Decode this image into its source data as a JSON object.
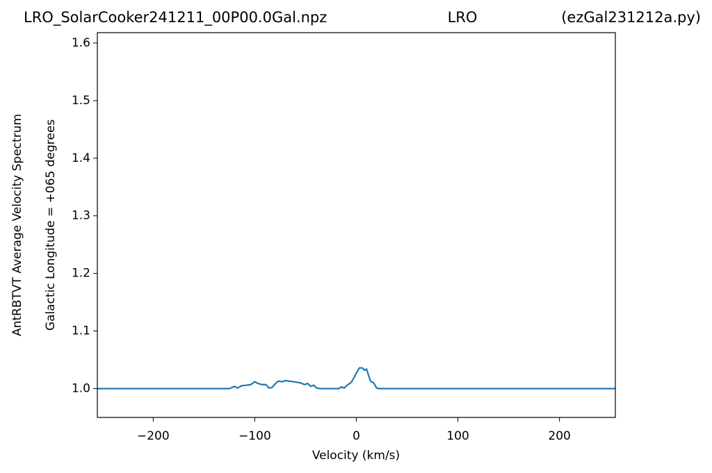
{
  "chart_data": {
    "type": "line",
    "title": "LRO_SolarCooker241211_00P00.0Gal.npz",
    "title_center": "LRO",
    "title_right": "(ezGal231212a.py)",
    "x_label": "Velocity (km/s)",
    "y_label": "AntRBTVT Average Velocity Spectrum",
    "y_label_2": "Galactic Longitude = +065 degrees",
    "xlim": [
      -255,
      255
    ],
    "ylim": [
      0.95,
      1.618
    ],
    "xticks": [
      {
        "value": -200,
        "label": "−200"
      },
      {
        "value": -100,
        "label": "−100"
      },
      0,
      100,
      200
    ],
    "yticks": [
      {
        "value": 1,
        "label": "1.0"
      },
      1.1,
      1.2,
      1.3,
      1.4,
      1.5,
      1.6
    ],
    "grid": false,
    "x": [
      -255,
      -125,
      -120,
      -117,
      -113,
      -108,
      -104,
      -100,
      -97,
      -93,
      -89,
      -86,
      -83,
      -80,
      -77,
      -73,
      -70,
      -66,
      -62,
      -58,
      -55,
      -51,
      -48,
      -45,
      -42,
      -39,
      -35,
      -17,
      -15,
      -12,
      -9,
      -5,
      -2,
      1,
      3,
      6,
      8,
      10,
      12,
      14,
      17,
      20,
      22,
      255
    ],
    "series": [
      {
        "color": "#1f77b4",
        "values": [
          1.0,
          1.0,
          1.004,
          1.001,
          1.005,
          1.006,
          1.007,
          1.012,
          1.009,
          1.007,
          1.007,
          1.001,
          1.002,
          1.008,
          1.013,
          1.012,
          1.014,
          1.013,
          1.012,
          1.011,
          1.01,
          1.007,
          1.009,
          1.004,
          1.006,
          1.001,
          1.0,
          1.0,
          1.003,
          1.001,
          1.006,
          1.011,
          1.02,
          1.03,
          1.036,
          1.036,
          1.032,
          1.034,
          1.023,
          1.013,
          1.01,
          1.001,
          1.0,
          1.0
        ]
      }
    ]
  }
}
